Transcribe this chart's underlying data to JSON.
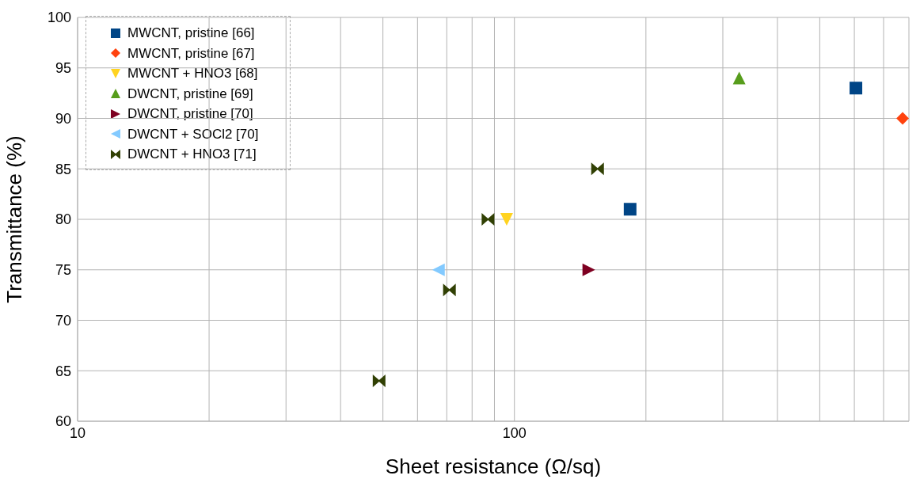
{
  "chart_data": {
    "type": "scatter",
    "xlabel": "Sheet resistance (Ω/sq)",
    "ylabel": "Transmittance (%)",
    "log": "x",
    "grid": true,
    "legend": "top left",
    "xlim": [
      10,
      800
    ],
    "xticks": [
      10,
      {
        "value": 20,
        "label": null
      },
      {
        "value": 30,
        "label": null
      },
      {
        "value": 40,
        "label": null
      },
      {
        "value": 50,
        "label": null
      },
      {
        "value": 60,
        "label": null
      },
      {
        "value": 70,
        "label": null
      },
      {
        "value": 80,
        "label": null
      },
      {
        "value": 90,
        "label": null
      },
      100,
      {
        "value": 200,
        "label": null
      },
      {
        "value": 300,
        "label": null
      },
      {
        "value": 400,
        "label": null
      },
      {
        "value": 500,
        "label": null
      },
      {
        "value": 600,
        "label": null
      },
      {
        "value": 700,
        "label": null
      },
      {
        "value": 800,
        "label": null
      }
    ],
    "ylim": [
      60,
      100
    ],
    "yticks": [
      60,
      65,
      70,
      75,
      80,
      85,
      90,
      95,
      100
    ],
    "series": [
      {
        "name": "MWCNT, pristine [66]",
        "color": "#004586",
        "marker": "square",
        "x": [
          605,
          184
        ],
        "values": [
          93,
          81
        ]
      },
      {
        "name": "MWCNT, pristine [67]",
        "color": "#ff420e",
        "marker": "diamond",
        "x": [
          774
        ],
        "values": [
          90
        ]
      },
      {
        "name": "MWCNT + HNO3 [68]",
        "color": "#ffd320",
        "marker": "triangle-down",
        "x": [
          96
        ],
        "values": [
          80
        ]
      },
      {
        "name": "DWCNT, pristine [69]",
        "color": "#579d1c",
        "marker": "triangle",
        "x": [
          327
        ],
        "values": [
          94
        ]
      },
      {
        "name": "DWCNT, pristine [70]",
        "color": "#7e0021",
        "marker": "triangle-right",
        "x": [
          148
        ],
        "values": [
          75
        ]
      },
      {
        "name": "DWCNT + SOCl2 [70]",
        "color": "#83caff",
        "marker": "triangle-left",
        "x": [
          67
        ],
        "values": [
          75
        ]
      },
      {
        "name": "DWCNT + HNO3 [71]",
        "color": "#314004",
        "x": [
          49,
          71,
          87,
          155
        ],
        "values": [
          64,
          73,
          80,
          85
        ]
      }
    ]
  }
}
